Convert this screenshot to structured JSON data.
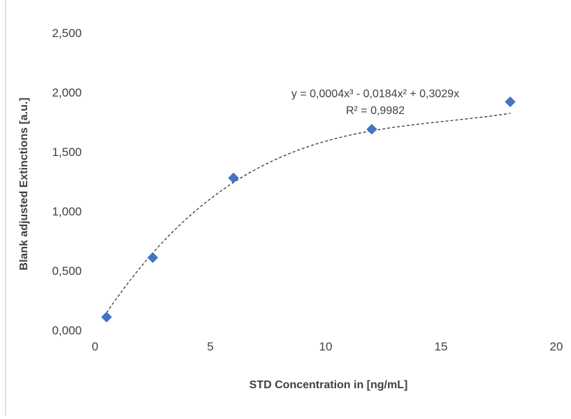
{
  "chart_data": {
    "type": "scatter",
    "xlabel": "STD Concentration in [ng/mL]",
    "ylabel": "Blank adjusted Extinctions [a.u.]",
    "xlim": [
      0,
      20
    ],
    "ylim": [
      0,
      2.5
    ],
    "x_ticks": [
      {
        "value": 0,
        "label": "0"
      },
      {
        "value": 5,
        "label": "5"
      },
      {
        "value": 10,
        "label": "10"
      },
      {
        "value": 15,
        "label": "15"
      },
      {
        "value": 20,
        "label": "20"
      }
    ],
    "y_ticks": [
      {
        "value": 0,
        "label": "0,000"
      },
      {
        "value": 0.5,
        "label": "0,500"
      },
      {
        "value": 1.0,
        "label": "1,000"
      },
      {
        "value": 1.5,
        "label": "1,500"
      },
      {
        "value": 2.0,
        "label": "2,000"
      },
      {
        "value": 2.5,
        "label": "2,500"
      }
    ],
    "grid": false,
    "marker_color": "#4472C4",
    "series": [
      {
        "x": [
          0.5,
          2.5,
          6,
          12,
          18
        ],
        "y": [
          0.11,
          0.61,
          1.28,
          1.69,
          1.92
        ]
      }
    ],
    "trendline": {
      "type": "polynomial",
      "order": 3,
      "coefficients": {
        "a3": 0.0004,
        "a2": -0.0184,
        "a1": 0.3029,
        "a0": 0
      },
      "line_style": "dashed",
      "equation_label": "y = 0,0004x³ - 0,0184x² + 0,3029x",
      "r2_label": "R² = 0,9982"
    }
  }
}
